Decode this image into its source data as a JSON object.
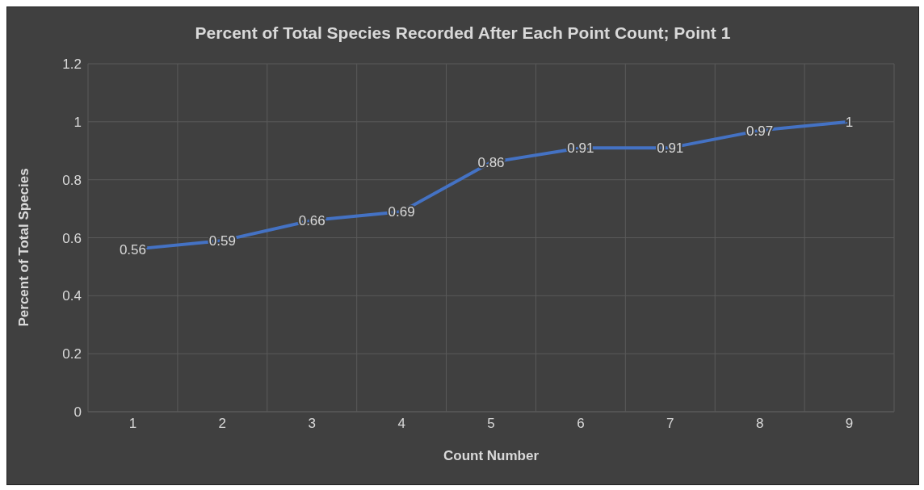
{
  "chart_data": {
    "type": "line",
    "title": "Percent of Total Species Recorded After Each Point Count; Point 1",
    "xlabel": "Count Number",
    "ylabel": "Percent of Total Species",
    "categories": [
      "1",
      "2",
      "3",
      "4",
      "5",
      "6",
      "7",
      "8",
      "9"
    ],
    "series": [
      {
        "color": "#4472c4",
        "values": [
          0.56,
          0.59,
          0.66,
          0.69,
          0.86,
          0.91,
          0.91,
          0.97,
          1
        ]
      }
    ],
    "ylim": [
      0,
      1.2
    ],
    "yticks": [
      0,
      0.2,
      0.4,
      0.6,
      0.8,
      1,
      1.2
    ],
    "grid": true,
    "data_labels": true,
    "marker": "none",
    "line_style": "solid"
  }
}
